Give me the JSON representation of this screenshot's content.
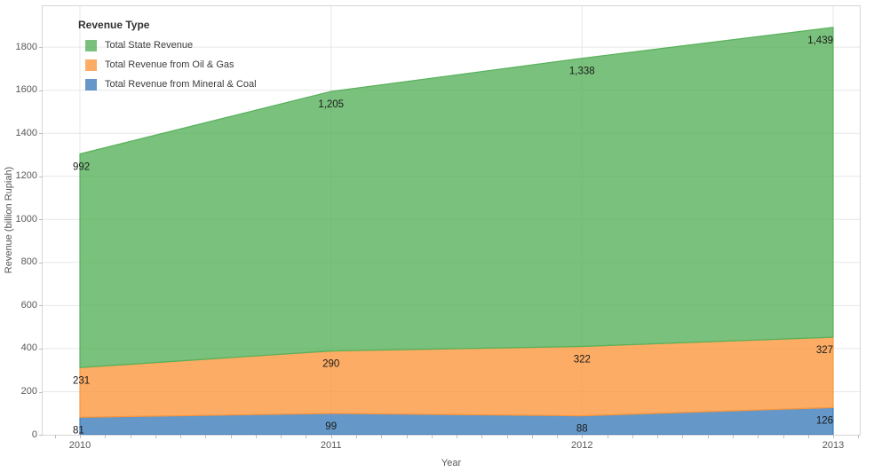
{
  "chart_data": {
    "type": "area",
    "stacked": true,
    "title": "",
    "xlabel": "Year",
    "ylabel": "Revenue (billion Rupiah)",
    "categories": [
      "2010",
      "2011",
      "2012",
      "2013"
    ],
    "series": [
      {
        "name": "Total Revenue from Mineral & Coal",
        "values": [
          81,
          99,
          88,
          126
        ],
        "labels": [
          "81",
          "99",
          "88",
          "126"
        ],
        "color": "#3e7eba"
      },
      {
        "name": "Total Revenue from Oil & Gas",
        "values": [
          231,
          290,
          322,
          327
        ],
        "labels": [
          "231",
          "290",
          "322",
          "327"
        ],
        "color": "#fb973d"
      },
      {
        "name": "Total State Revenue",
        "values": [
          992,
          1205,
          1338,
          1439
        ],
        "labels": [
          "992",
          "1,205",
          "1,338",
          "1,439"
        ],
        "color": "#58b15b"
      }
    ],
    "legend": {
      "title": "Revenue Type",
      "position": "top-left",
      "series_order": [
        2,
        1,
        0
      ]
    },
    "y_ticks": [
      0,
      200,
      400,
      600,
      800,
      1000,
      1200,
      1400,
      1600,
      1800
    ],
    "ylim": [
      0,
      1990
    ],
    "grid": true,
    "colors": {
      "gridline": "#e7e7e7",
      "plot_border": "#d6d6d6",
      "axis_text": "#575757",
      "data_label": "#1a1a1a"
    }
  }
}
